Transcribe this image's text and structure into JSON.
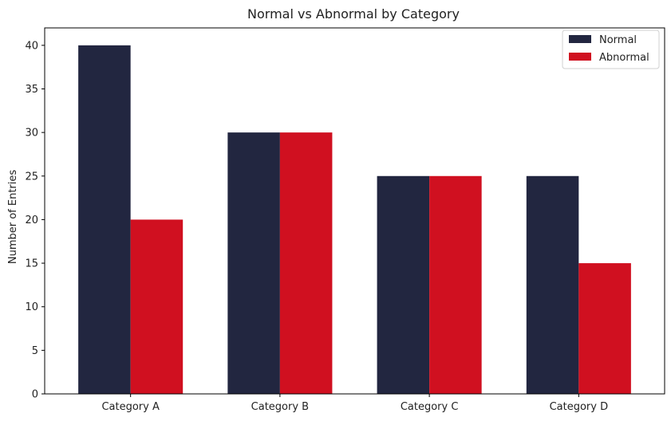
{
  "chart_data": {
    "type": "bar",
    "title": "Normal vs Abnormal by Category",
    "xlabel": "",
    "ylabel": "Number of Entries",
    "categories": [
      "Category A",
      "Category B",
      "Category C",
      "Category D"
    ],
    "series": [
      {
        "name": "Normal",
        "values": [
          40,
          30,
          25,
          25
        ],
        "color": "#222640"
      },
      {
        "name": "Abnormal",
        "values": [
          20,
          30,
          25,
          15
        ],
        "color": "#d01020"
      }
    ],
    "ylim": [
      0,
      42
    ],
    "yticks": [
      0,
      5,
      10,
      15,
      20,
      25,
      30,
      35,
      40
    ],
    "grid": false,
    "legend_position": "top-right"
  }
}
